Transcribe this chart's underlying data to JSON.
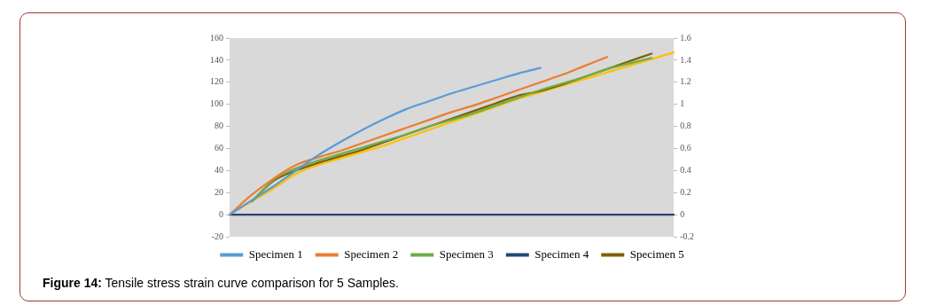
{
  "chart_data": {
    "type": "line",
    "categories": [
      null,
      null,
      null,
      null,
      null,
      null,
      null,
      null,
      null,
      null,
      null,
      null,
      null,
      null,
      null,
      null,
      null,
      null,
      null,
      null,
      null
    ],
    "series": [
      {
        "name": "Specimen 1",
        "color": "#5b9bd5",
        "values": [
          0,
          13,
          26,
          40,
          54,
          66,
          77,
          87,
          96,
          103,
          110,
          116,
          122,
          128,
          133,
          null,
          null,
          null,
          null,
          null,
          null
        ]
      },
      {
        "name": "Specimen 2",
        "color": "#ed7d31",
        "values": [
          0,
          18,
          33,
          45,
          52,
          58,
          65,
          72,
          79,
          86,
          93,
          99,
          106,
          113,
          120,
          127,
          135,
          143,
          null,
          null,
          null
        ]
      },
      {
        "name": "Specimen 3",
        "color": "#70ad47",
        "values": [
          null,
          12,
          32,
          42,
          49,
          55,
          61,
          67,
          73,
          80,
          86,
          92,
          99,
          106,
          113,
          119,
          125,
          132,
          137,
          142,
          null
        ]
      },
      {
        "name": "Specimen 4",
        "color": "#264478",
        "axis": "y2",
        "values": [
          0,
          0,
          0,
          0,
          0,
          0,
          0,
          0,
          0,
          0,
          0,
          0,
          0,
          0,
          0,
          0,
          0,
          0,
          0,
          0,
          0
        ]
      },
      {
        "name": "Specimen 5",
        "color": "#7f6000",
        "values": [
          null,
          12,
          31,
          40,
          47,
          53,
          59,
          66,
          73,
          80,
          87,
          94,
          101,
          108,
          112,
          118,
          125,
          132,
          139,
          146,
          null
        ]
      },
      {
        "color": "#ffc000",
        "values": [
          0,
          12,
          24,
          37,
          45,
          51,
          57,
          63,
          70,
          77,
          84,
          91,
          98,
          105,
          111,
          117,
          123,
          129,
          135,
          141,
          147
        ]
      }
    ],
    "ylim": [
      -20,
      160
    ],
    "yticks": [
      -20,
      0,
      20,
      40,
      60,
      80,
      100,
      120,
      140,
      160
    ],
    "y2lim": [
      -0.2,
      1.6
    ],
    "y2ticks": [
      -0.2,
      0,
      0.2,
      0.4,
      0.6,
      0.8,
      1,
      1.2,
      1.4,
      1.6
    ],
    "tick_labels": "y",
    "grid": false,
    "legend": "bottom",
    "marker": "none",
    "line_style": "solid",
    "annotations": [
      "Figure 14: Tensile stress strain curve comparison for 5 Samples."
    ]
  }
}
